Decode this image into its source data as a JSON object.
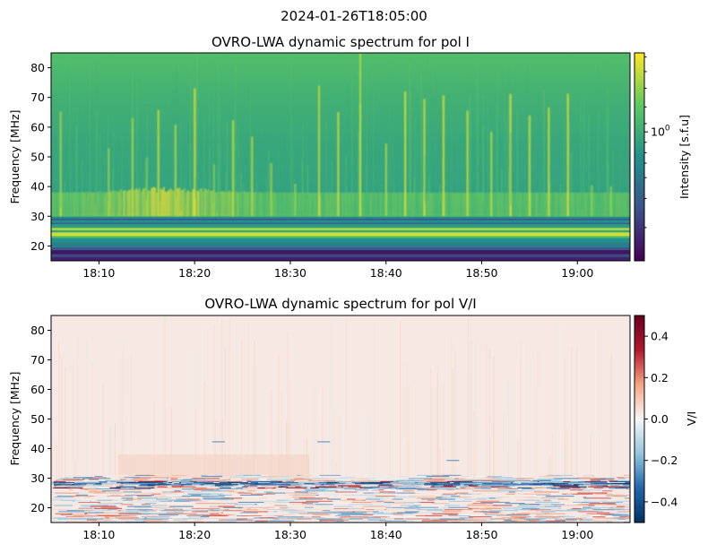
{
  "figure": {
    "suptitle": "2024-01-26T18:05:00"
  },
  "chart_data": [
    {
      "type": "heatmap",
      "title": "OVRO-LWA dynamic spectrum for pol I",
      "xlabel": "",
      "ylabel": "Frequency [MHz]",
      "x_tick_labels": [
        "18:10",
        "18:20",
        "18:30",
        "18:40",
        "18:50",
        "19:00"
      ],
      "x_tick_minutes": [
        10,
        20,
        30,
        40,
        50,
        60
      ],
      "xlim_minutes_after_18h": [
        5,
        65.5
      ],
      "y_ticks": [
        20,
        30,
        40,
        50,
        60,
        70,
        80
      ],
      "ylim": [
        15,
        85
      ],
      "colormap": "viridis",
      "colorbar": {
        "label": "Intensity [s.f.u]",
        "scale": "log",
        "major_tick_label_base": "10",
        "major_tick_label_exp": "0",
        "major_tick_fraction": 0.62,
        "minor_tick_fractions": [
          0.16,
          0.3,
          0.4,
          0.47,
          0.52,
          0.57,
          0.66,
          0.74,
          0.83,
          0.91,
          0.98
        ],
        "colors": [
          "#440154",
          "#3b528b",
          "#21918c",
          "#5ec962",
          "#fde725"
        ]
      },
      "features": {
        "low_band_mhz": [
          15,
          19
        ],
        "bright_band_mhz": [
          23,
          26
        ],
        "burst_band_mhz": [
          30,
          38
        ],
        "persistent_line_minute": 37.3,
        "burst_minutes": [
          6,
          11,
          13.5,
          15,
          16.2,
          18,
          20,
          22,
          24,
          26,
          28,
          30.5,
          33,
          35,
          37.3,
          40,
          42,
          44,
          46,
          48.5,
          51,
          53,
          55,
          57,
          59,
          61.5,
          63.5
        ]
      }
    },
    {
      "type": "heatmap",
      "title": "OVRO-LWA dynamic spectrum for pol V/I",
      "xlabel": "",
      "ylabel": "Frequency [MHz]",
      "x_tick_labels": [
        "18:10",
        "18:20",
        "18:30",
        "18:40",
        "18:50",
        "19:00"
      ],
      "x_tick_minutes": [
        10,
        20,
        30,
        40,
        50,
        60
      ],
      "xlim_minutes_after_18h": [
        5,
        65.5
      ],
      "y_ticks": [
        20,
        30,
        40,
        50,
        60,
        70,
        80
      ],
      "ylim": [
        15,
        85
      ],
      "colormap": "RdBu_r",
      "colorbar": {
        "label": "V/I",
        "scale": "linear",
        "range": [
          -0.5,
          0.5
        ],
        "ticks": [
          0.4,
          0.2,
          0.0,
          -0.2,
          -0.4
        ],
        "tick_labels": [
          "0.4",
          "0.2",
          "0.0",
          "−0.2",
          "−0.4"
        ],
        "colors": [
          "#053061",
          "#2166ac",
          "#92c5de",
          "#f7f7f7",
          "#f4a582",
          "#b2182b",
          "#67001f"
        ]
      },
      "features": {
        "background_value": 0.03,
        "noisy_band_mhz": [
          15,
          31
        ],
        "dashes": [
          {
            "minute": 22.5,
            "mhz": 42.3
          },
          {
            "minute": 33.5,
            "mhz": 42.3
          },
          {
            "minute": 47,
            "mhz": 36
          }
        ]
      }
    }
  ]
}
